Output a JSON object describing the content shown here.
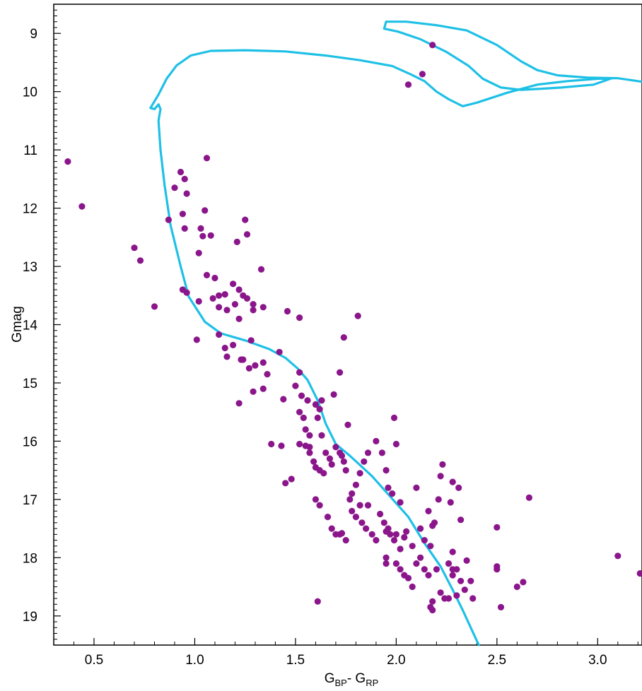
{
  "chart_data": {
    "type": "scatter",
    "xlabel": "G",
    "xlabel_sub1": "BP",
    "xlabel_mid": "- G",
    "xlabel_sub2": "RP",
    "ylabel": "Gmag",
    "xlim": [
      0.3,
      3.22
    ],
    "ylim": [
      19.5,
      8.5
    ],
    "y_inverted": true,
    "grid": false,
    "x_ticks": [
      0.5,
      1.0,
      1.5,
      2.0,
      2.5,
      3.0
    ],
    "x_tick_labels": [
      "0.5",
      "1.0",
      "1.5",
      "2.0",
      "2.5",
      "3.0"
    ],
    "y_ticks": [
      9,
      10,
      11,
      12,
      13,
      14,
      15,
      16,
      17,
      18,
      19
    ],
    "y_tick_labels": [
      "9",
      "10",
      "11",
      "12",
      "13",
      "14",
      "15",
      "16",
      "17",
      "18",
      "19"
    ],
    "colors": {
      "points": "#8b168b",
      "isochrone": "#1ec0e6"
    },
    "series": [
      {
        "type": "scatter",
        "points": [
          [
            0.37,
            11.2
          ],
          [
            0.44,
            11.97
          ],
          [
            0.7,
            12.68
          ],
          [
            0.73,
            12.9
          ],
          [
            0.8,
            13.69
          ],
          [
            0.87,
            12.2
          ],
          [
            0.9,
            11.65
          ],
          [
            0.93,
            11.38
          ],
          [
            0.95,
            11.5
          ],
          [
            0.96,
            11.75
          ],
          [
            0.94,
            12.1
          ],
          [
            0.95,
            12.35
          ],
          [
            0.94,
            13.4
          ],
          [
            0.96,
            13.45
          ],
          [
            1.02,
            12.77
          ],
          [
            1.03,
            12.35
          ],
          [
            1.04,
            12.48
          ],
          [
            1.05,
            12.04
          ],
          [
            1.06,
            11.14
          ],
          [
            1.08,
            12.47
          ],
          [
            1.02,
            13.6
          ],
          [
            1.06,
            13.15
          ],
          [
            1.09,
            13.55
          ],
          [
            1.1,
            13.2
          ],
          [
            1.12,
            13.5
          ],
          [
            1.12,
            13.7
          ],
          [
            1.15,
            13.48
          ],
          [
            1.16,
            13.75
          ],
          [
            1.19,
            13.3
          ],
          [
            1.2,
            13.65
          ],
          [
            1.22,
            13.4
          ],
          [
            1.21,
            12.58
          ],
          [
            1.25,
            12.2
          ],
          [
            1.26,
            12.45
          ],
          [
            1.24,
            13.5
          ],
          [
            1.22,
            13.9
          ],
          [
            1.26,
            13.55
          ],
          [
            1.29,
            13.65
          ],
          [
            1.29,
            13.75
          ],
          [
            1.33,
            13.05
          ],
          [
            1.34,
            13.7
          ],
          [
            1.01,
            14.26
          ],
          [
            1.12,
            14.17
          ],
          [
            1.15,
            14.4
          ],
          [
            1.16,
            14.55
          ],
          [
            1.19,
            14.35
          ],
          [
            1.23,
            14.6
          ],
          [
            1.24,
            14.6
          ],
          [
            1.28,
            14.27
          ],
          [
            1.27,
            14.75
          ],
          [
            1.3,
            14.7
          ],
          [
            1.34,
            14.65
          ],
          [
            1.36,
            14.85
          ],
          [
            1.29,
            15.15
          ],
          [
            1.34,
            15.1
          ],
          [
            1.22,
            15.35
          ],
          [
            1.42,
            14.47
          ],
          [
            1.46,
            13.77
          ],
          [
            1.52,
            13.88
          ],
          [
            1.38,
            16.05
          ],
          [
            1.43,
            16.08
          ],
          [
            1.45,
            16.72
          ],
          [
            1.48,
            16.65
          ],
          [
            1.44,
            15.28
          ],
          [
            1.5,
            15.05
          ],
          [
            1.52,
            14.82
          ],
          [
            1.53,
            15.22
          ],
          [
            1.52,
            15.5
          ],
          [
            1.54,
            15.6
          ],
          [
            1.56,
            15.3
          ],
          [
            1.55,
            15.8
          ],
          [
            1.57,
            15.9
          ],
          [
            1.57,
            16.1
          ],
          [
            1.6,
            15.37
          ],
          [
            1.62,
            15.45
          ],
          [
            1.63,
            15.3
          ],
          [
            1.61,
            15.6
          ],
          [
            1.63,
            15.9
          ],
          [
            1.52,
            16.05
          ],
          [
            1.55,
            16.08
          ],
          [
            1.57,
            16.2
          ],
          [
            1.59,
            16.35
          ],
          [
            1.6,
            16.45
          ],
          [
            1.62,
            16.5
          ],
          [
            1.64,
            16.55
          ],
          [
            1.65,
            16.2
          ],
          [
            1.67,
            16.3
          ],
          [
            1.68,
            16.4
          ],
          [
            1.7,
            16.1
          ],
          [
            1.72,
            16.2
          ],
          [
            1.73,
            16.25
          ],
          [
            1.74,
            16.35
          ],
          [
            1.75,
            16.5
          ],
          [
            1.6,
            17.0
          ],
          [
            1.62,
            17.1
          ],
          [
            1.66,
            17.3
          ],
          [
            1.68,
            17.5
          ],
          [
            1.7,
            17.6
          ],
          [
            1.72,
            17.6
          ],
          [
            1.73,
            17.58
          ],
          [
            1.75,
            17.7
          ],
          [
            1.77,
            17.0
          ],
          [
            1.78,
            17.2
          ],
          [
            1.8,
            17.3
          ],
          [
            1.82,
            17.1
          ],
          [
            1.83,
            17.4
          ],
          [
            1.85,
            17.5
          ],
          [
            1.86,
            17.1
          ],
          [
            1.88,
            17.6
          ],
          [
            1.9,
            17.7
          ],
          [
            1.92,
            17.25
          ],
          [
            1.94,
            17.4
          ],
          [
            1.95,
            17.55
          ],
          [
            1.96,
            17.5
          ],
          [
            1.97,
            17.6
          ],
          [
            1.99,
            17.7
          ],
          [
            2.0,
            17.6
          ],
          [
            2.02,
            17.85
          ],
          [
            2.04,
            17.65
          ],
          [
            1.78,
            16.9
          ],
          [
            1.8,
            16.75
          ],
          [
            1.82,
            16.55
          ],
          [
            1.84,
            16.35
          ],
          [
            1.86,
            16.2
          ],
          [
            1.9,
            16.0
          ],
          [
            1.93,
            16.2
          ],
          [
            1.95,
            16.5
          ],
          [
            1.98,
            16.9
          ],
          [
            2.0,
            16.05
          ],
          [
            2.02,
            17.05
          ],
          [
            1.99,
            15.6
          ],
          [
            1.96,
            16.8
          ],
          [
            1.76,
            15.72
          ],
          [
            1.69,
            15.2
          ],
          [
            1.72,
            14.82
          ],
          [
            1.74,
            14.22
          ],
          [
            1.81,
            13.85
          ],
          [
            1.95,
            18.0
          ],
          [
            1.95,
            18.1
          ],
          [
            2.0,
            18.1
          ],
          [
            2.02,
            18.2
          ],
          [
            2.04,
            18.3
          ],
          [
            2.06,
            18.35
          ],
          [
            2.08,
            18.5
          ],
          [
            2.1,
            18.1
          ],
          [
            2.12,
            18.0
          ],
          [
            2.14,
            18.2
          ],
          [
            2.16,
            18.3
          ],
          [
            2.18,
            18.75
          ],
          [
            2.2,
            18.2
          ],
          [
            2.22,
            18.6
          ],
          [
            2.24,
            18.7
          ],
          [
            2.26,
            18.1
          ],
          [
            2.28,
            18.3
          ],
          [
            2.3,
            18.65
          ],
          [
            2.32,
            18.4
          ],
          [
            2.34,
            18.55
          ],
          [
            2.05,
            17.55
          ],
          [
            2.08,
            17.8
          ],
          [
            2.12,
            17.5
          ],
          [
            2.14,
            17.7
          ],
          [
            2.17,
            17.8
          ],
          [
            2.19,
            17.4
          ],
          [
            2.21,
            17.0
          ],
          [
            2.16,
            17.2
          ],
          [
            2.18,
            17.45
          ],
          [
            2.22,
            16.6
          ],
          [
            2.23,
            16.4
          ],
          [
            2.1,
            16.8
          ],
          [
            2.27,
            17.05
          ],
          [
            2.28,
            16.7
          ],
          [
            2.31,
            16.8
          ],
          [
            2.32,
            17.35
          ],
          [
            2.28,
            17.9
          ],
          [
            2.35,
            18.05
          ],
          [
            2.37,
            18.4
          ],
          [
            2.38,
            18.7
          ],
          [
            2.26,
            18.7
          ],
          [
            2.28,
            18.2
          ],
          [
            2.3,
            18.2
          ],
          [
            2.5,
            17.48
          ],
          [
            2.5,
            18.15
          ],
          [
            2.5,
            18.2
          ],
          [
            2.52,
            18.85
          ],
          [
            2.6,
            18.5
          ],
          [
            2.63,
            18.42
          ],
          [
            2.66,
            16.97
          ],
          [
            1.61,
            18.75
          ],
          [
            2.17,
            18.85
          ],
          [
            2.18,
            18.9
          ],
          [
            3.1,
            17.97
          ],
          [
            3.21,
            18.27
          ],
          [
            2.06,
            9.88
          ],
          [
            2.13,
            9.7
          ],
          [
            2.18,
            9.2
          ]
        ]
      },
      {
        "type": "line",
        "name": "",
        "points": [
          [
            2.41,
            19.5
          ],
          [
            2.37,
            19.2
          ],
          [
            2.33,
            18.9
          ],
          [
            2.28,
            18.55
          ],
          [
            2.22,
            18.15
          ],
          [
            2.14,
            17.75
          ],
          [
            2.06,
            17.3
          ],
          [
            1.97,
            16.95
          ],
          [
            1.88,
            16.6
          ],
          [
            1.77,
            16.25
          ],
          [
            1.7,
            16.05
          ],
          [
            1.65,
            15.7
          ],
          [
            1.61,
            15.3
          ],
          [
            1.56,
            14.95
          ],
          [
            1.51,
            14.75
          ],
          [
            1.45,
            14.57
          ],
          [
            1.37,
            14.42
          ],
          [
            1.25,
            14.27
          ],
          [
            1.13,
            14.15
          ],
          [
            1.05,
            13.95
          ],
          [
            0.97,
            13.52
          ],
          [
            0.93,
            13.0
          ],
          [
            0.88,
            12.3
          ],
          [
            0.85,
            11.6
          ],
          [
            0.83,
            11.0
          ],
          [
            0.82,
            10.5
          ],
          [
            0.83,
            10.3
          ],
          [
            0.82,
            10.22
          ],
          [
            0.8,
            10.3
          ],
          [
            0.78,
            10.28
          ],
          [
            0.82,
            10.05
          ],
          [
            0.86,
            9.78
          ],
          [
            0.91,
            9.55
          ],
          [
            0.98,
            9.38
          ],
          [
            1.08,
            9.3
          ],
          [
            1.25,
            9.29
          ],
          [
            1.45,
            9.31
          ],
          [
            1.65,
            9.38
          ],
          [
            1.82,
            9.46
          ],
          [
            1.98,
            9.56
          ],
          [
            2.07,
            9.7
          ],
          [
            2.14,
            9.82
          ],
          [
            2.2,
            10.0
          ],
          [
            2.26,
            10.13
          ],
          [
            2.33,
            10.25
          ],
          [
            2.4,
            10.19
          ],
          [
            2.55,
            10.02
          ],
          [
            2.7,
            9.88
          ],
          [
            2.85,
            9.82
          ],
          [
            3.0,
            9.78
          ],
          [
            3.07,
            9.77
          ],
          [
            2.98,
            9.88
          ],
          [
            2.82,
            9.93
          ],
          [
            2.72,
            9.95
          ],
          [
            2.62,
            9.97
          ],
          [
            2.52,
            9.93
          ],
          [
            2.43,
            9.78
          ],
          [
            2.36,
            9.56
          ],
          [
            2.25,
            9.32
          ],
          [
            2.12,
            9.1
          ],
          [
            2.01,
            8.97
          ],
          [
            1.94,
            8.92
          ],
          [
            1.95,
            8.8
          ],
          [
            2.05,
            8.8
          ],
          [
            2.2,
            8.86
          ],
          [
            2.35,
            8.95
          ],
          [
            2.5,
            9.2
          ],
          [
            2.62,
            9.48
          ],
          [
            2.7,
            9.63
          ],
          [
            2.8,
            9.72
          ],
          [
            2.95,
            9.76
          ],
          [
            3.1,
            9.77
          ],
          [
            3.22,
            9.83
          ]
        ]
      }
    ]
  }
}
